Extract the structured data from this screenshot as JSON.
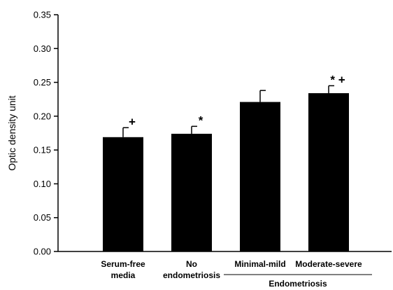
{
  "chart_data": {
    "type": "bar",
    "title": "",
    "xlabel": "",
    "ylabel": "Optic density unit",
    "ylim": [
      0,
      0.35
    ],
    "yticks": [
      "0.00",
      "0.05",
      "0.10",
      "0.15",
      "0.20",
      "0.25",
      "0.30",
      "0.35"
    ],
    "grid": false,
    "categories": [
      [
        "Serum-free",
        "media"
      ],
      [
        "No",
        "endometriosis"
      ],
      [
        "Minimal-mild"
      ],
      [
        "Moderate-severe"
      ]
    ],
    "values": [
      0.169,
      0.174,
      0.221,
      0.234
    ],
    "errors": [
      0.014,
      0.011,
      0.017,
      0.011
    ],
    "annotations": [
      "+",
      "*",
      "",
      "* +"
    ],
    "colors": {
      "bar": "#000000",
      "axis": "#000000"
    },
    "group_label": {
      "text": "Endometriosis",
      "spans_categories": [
        2,
        3
      ]
    }
  }
}
